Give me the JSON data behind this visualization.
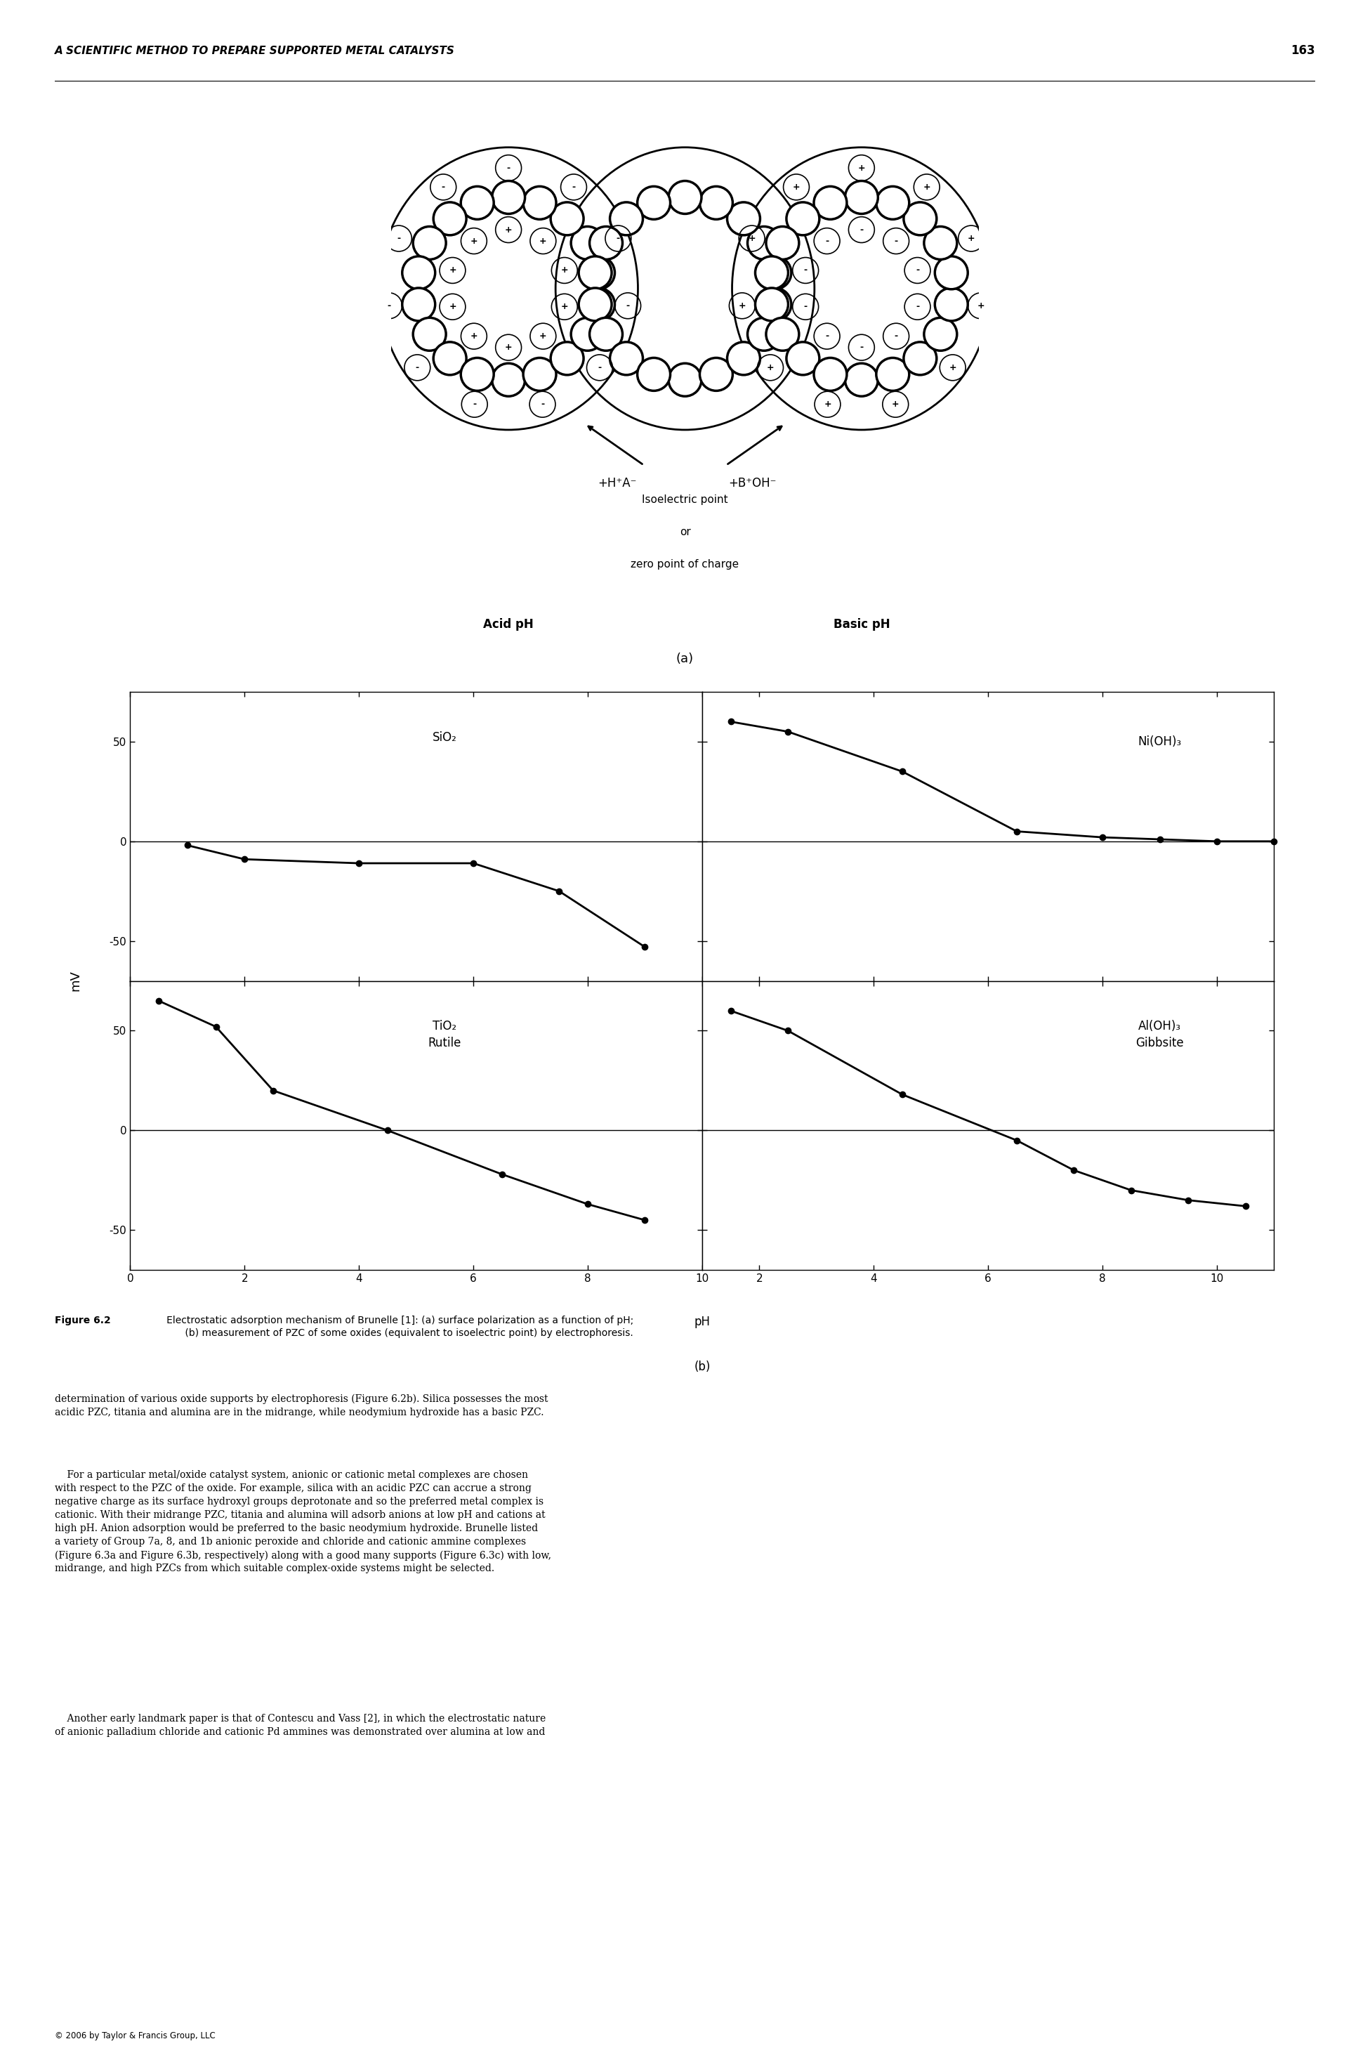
{
  "page_header": "A SCIENTIFIC METHOD TO PREPARE SUPPORTED METAL CATALYSTS",
  "page_number": "163",
  "fig_label_a": "(a)",
  "fig_label_b": "(b)",
  "caption_bold": "Figure 6.2",
  "caption_rest": "   Electrostatic adsorption mechanism of Brunelle [1]: (a) surface polarization as a function of pH;\n         (b) measurement of PZC of some oxides (equivalent to isoelectric point) by electrophoresis.",
  "acid_label": "Acid pH",
  "basic_label": "Basic pH",
  "isoelectric_line1": "Isoelectric point",
  "isoelectric_line2": "or",
  "isoelectric_line3": "zero point of charge",
  "arrow_left_label": "+H⁺A⁻",
  "arrow_right_label": "+B⁺OH⁻",
  "ylabel": "mV",
  "xlabel": "pH",
  "sio2_label": "SiO₂",
  "nioh3_label": "Ni(OH)₃",
  "tio2_line1": "TiO₂",
  "tio2_line2": "Rutile",
  "aloh3_line1": "Al(OH)₃",
  "aloh3_line2": "Gibbsite",
  "sio2_x": [
    1.0,
    2.0,
    4.0,
    6.0,
    7.5,
    9.0
  ],
  "sio2_y": [
    -2,
    -9,
    -11,
    -11,
    -25,
    -53
  ],
  "nioh3_x": [
    1.5,
    2.5,
    4.5,
    6.5,
    8.0,
    9.0,
    10.0,
    11.0
  ],
  "nioh3_y": [
    60,
    55,
    35,
    5,
    2,
    1,
    0,
    0
  ],
  "tio2_x": [
    0.5,
    1.5,
    2.5,
    4.5,
    6.5,
    8.0,
    9.0
  ],
  "tio2_y": [
    65,
    52,
    20,
    0,
    -22,
    -37,
    -45
  ],
  "aloh3_x": [
    1.5,
    2.5,
    4.5,
    6.5,
    7.5,
    8.5,
    9.5,
    10.5
  ],
  "aloh3_y": [
    60,
    50,
    18,
    -5,
    -20,
    -30,
    -35,
    -38
  ],
  "ylim": [
    -70,
    75
  ],
  "yticks": [
    -50,
    0,
    50
  ],
  "xticks_left": [
    0,
    2,
    4,
    6,
    8,
    10
  ],
  "xticks_right": [
    2,
    4,
    6,
    8,
    10
  ],
  "xlim_left": [
    0,
    10
  ],
  "xlim_right": [
    1,
    11
  ],
  "background_color": "#ffffff",
  "body1": "determination of various oxide supports by electrophoresis (Figure 6.2b). Silica possesses the most\nacidic PZC, titania and alumina are in the midrange, while neodymium hydroxide has a basic PZC.",
  "body2": "    For a particular metal/oxide catalyst system, anionic or cationic metal complexes are chosen\nwith respect to the PZC of the oxide. For example, silica with an acidic PZC can accrue a strong\nnegative charge as its surface hydroxyl groups deprotonate and so the preferred metal complex is\ncationic. With their midrange PZC, titania and alumina will adsorb anions at low pH and cations at\nhigh pH. Anion adsorption would be preferred to the basic neodymium hydroxide. Brunelle listed\na variety of Group 7a, 8, and 1b anionic peroxide and chloride and cationic ammine complexes\n(Figure 6.3a and Figure 6.3b, respectively) along with a good many supports (Figure 6.3c) with low,\nmidrange, and high PZCs from which suitable complex-oxide systems might be selected.",
  "body3": "    Another early landmark paper is that of Contescu and Vass [2], in which the electrostatic nature\nof anionic palladium chloride and cationic Pd ammines was demonstrated over alumina at low and",
  "footer": "© 2006 by Taylor & Francis Group, LLC"
}
